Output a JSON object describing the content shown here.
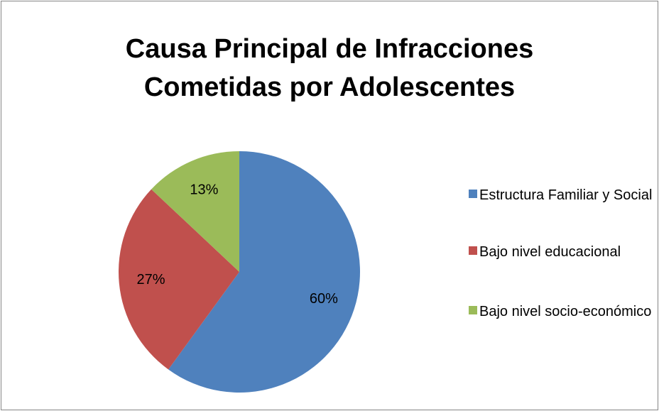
{
  "chart_data": {
    "type": "pie",
    "title": "Causa Principal de Infracciones Cometidas por Adolescentes",
    "categories": [
      "Estructura Familiar y Social",
      "Bajo nivel educacional",
      "Bajo nivel socio-económico"
    ],
    "values": [
      60,
      27,
      13
    ],
    "value_labels": [
      "60%",
      "27%",
      "13%"
    ],
    "colors": [
      "#4f81bd",
      "#c0504d",
      "#9bbb59"
    ],
    "legend": "right"
  }
}
